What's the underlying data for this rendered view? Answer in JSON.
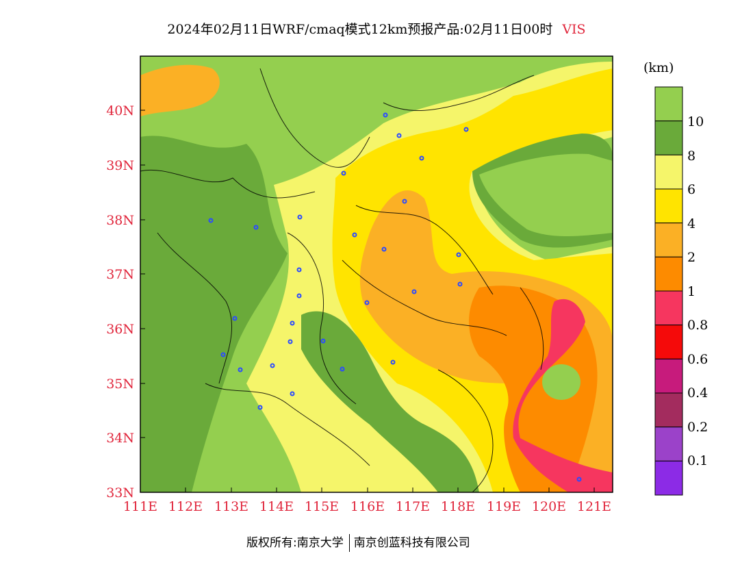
{
  "title": "2024年02月11日WRF/cmaq模式12km预报产品:02月11日00时",
  "variable": "VIS",
  "legend": {
    "unit": "(km)",
    "levels": [
      "10",
      "8",
      "6",
      "4",
      "2",
      "1",
      "0.8",
      "0.6",
      "0.4",
      "0.2",
      "0.1"
    ],
    "colors": [
      "#94cf4f",
      "#6aaa3a",
      "#f5f56a",
      "#ffe400",
      "#fbb025",
      "#fd8b00",
      "#f6365f",
      "#f50a0a",
      "#c71b7c",
      "#a32c5e",
      "#9b42c9",
      "#8c2be6"
    ]
  },
  "axes": {
    "lon_ticks": [
      "111E",
      "112E",
      "113E",
      "114E",
      "115E",
      "116E",
      "117E",
      "118E",
      "119E",
      "120E",
      "121E"
    ],
    "lat_ticks": [
      "40N",
      "39N",
      "38N",
      "37N",
      "36N",
      "35N",
      "34N",
      "33N"
    ],
    "lon_range": [
      111,
      121.4
    ],
    "lat_range": [
      33,
      41
    ]
  },
  "footer": {
    "left": "版权所有:南京大学",
    "right": "南京创蓝科技有限公司"
  }
}
